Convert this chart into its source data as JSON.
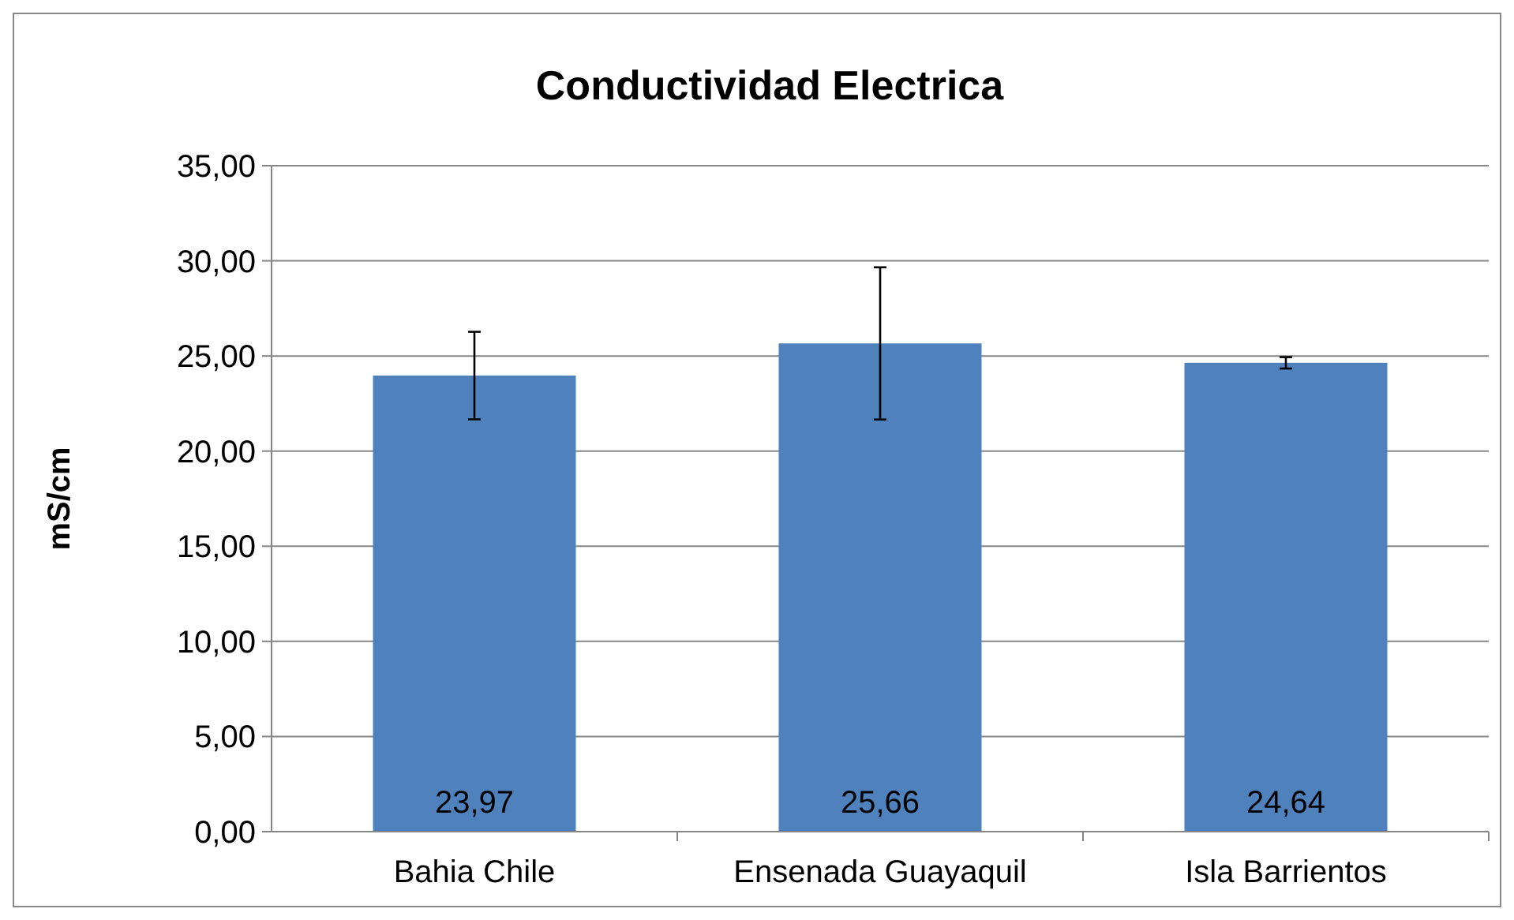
{
  "chart_data": {
    "type": "bar",
    "title": "Conductividad Electrica",
    "ylabel": "mS/cm",
    "categories": [
      "Bahia Chile",
      "Ensenada Guayaquil",
      "Isla Barrientos"
    ],
    "values": [
      23.97,
      25.66,
      24.64
    ],
    "errors": [
      2.3,
      4.0,
      0.3
    ],
    "value_labels": [
      "23,97",
      "25,66",
      "24,64"
    ],
    "color": "#4f81bd",
    "ylim": [
      0,
      35
    ],
    "yticks": [
      {
        "value": 0,
        "label": "0,00"
      },
      {
        "value": 5,
        "label": "5,00"
      },
      {
        "value": 10,
        "label": "10,00"
      },
      {
        "value": 15,
        "label": "15,00"
      },
      {
        "value": 20,
        "label": "20,00"
      },
      {
        "value": 25,
        "label": "25,00"
      },
      {
        "value": 30,
        "label": "30,00"
      },
      {
        "value": 35,
        "label": "35,00"
      }
    ],
    "grid": "y"
  }
}
